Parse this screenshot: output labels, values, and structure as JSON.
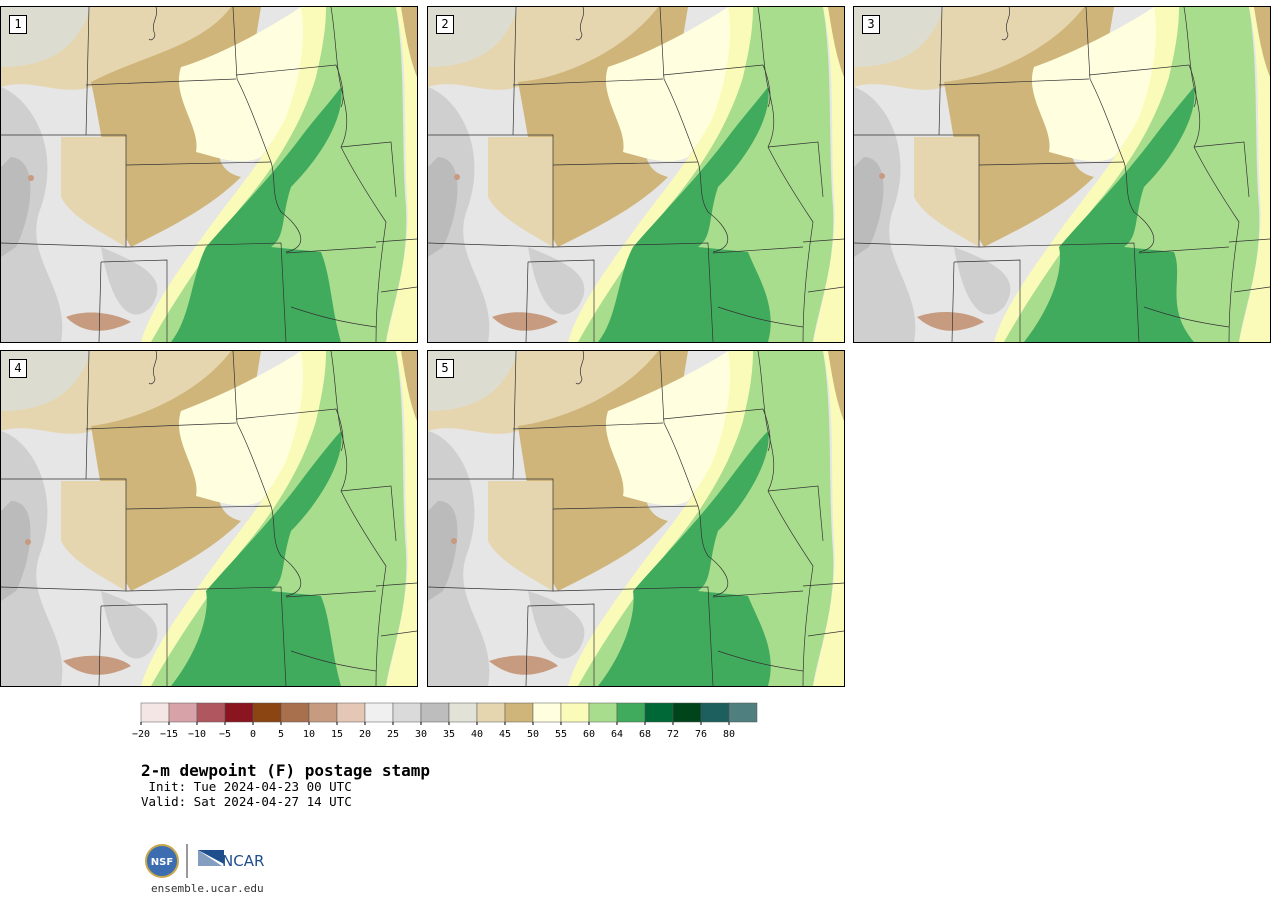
{
  "panels": [
    {
      "label": "1",
      "variant": 1
    },
    {
      "label": "2",
      "variant": 2
    },
    {
      "label": "3",
      "variant": 3
    },
    {
      "label": "4",
      "variant": 4
    },
    {
      "label": "5",
      "variant": 5
    }
  ],
  "legend": {
    "ticks": [
      "−20",
      "−15",
      "−10",
      "−5",
      "0",
      "5",
      "10",
      "15",
      "20",
      "25",
      "30",
      "35",
      "40",
      "45",
      "50",
      "55",
      "60",
      "64",
      "68",
      "72",
      "76",
      "80"
    ],
    "colors": [
      "#f5e6e6",
      "#d8a3a8",
      "#b0565e",
      "#8a1521",
      "#8b4513",
      "#a9704e",
      "#c79b80",
      "#e4c7b4",
      "#f0f0f0",
      "#dadada",
      "#bdbdbd",
      "#e2e2d7",
      "#e5d6b0",
      "#cfb57a",
      "#ffffe0",
      "#fbfbb9",
      "#a9dd8e",
      "#41ab5d",
      "#006837",
      "#00441b",
      "#1d5e5e",
      "#4f7f7f"
    ]
  },
  "title": "2-m dewpoint (F) postage stamp",
  "init_line": " Init: Tue 2024-04-23 00 UTC",
  "valid_line": "Valid: Sat 2024-04-27 14 UTC",
  "logos": {
    "nsf": "NSF",
    "ncar": "NCAR"
  },
  "website": "ensemble.ucar.edu",
  "map_colors": {
    "grey_light": "#e6e6e6",
    "grey_mid": "#cfcfcf",
    "grey_dark": "#b2b2b2",
    "tan": "#e5d6b0",
    "tan_dark": "#cfb57a",
    "cream": "#ffffe0",
    "yellow": "#fbfbb9",
    "green_light": "#a9dd8e",
    "green": "#41ab5d",
    "brown": "#c79b80"
  }
}
